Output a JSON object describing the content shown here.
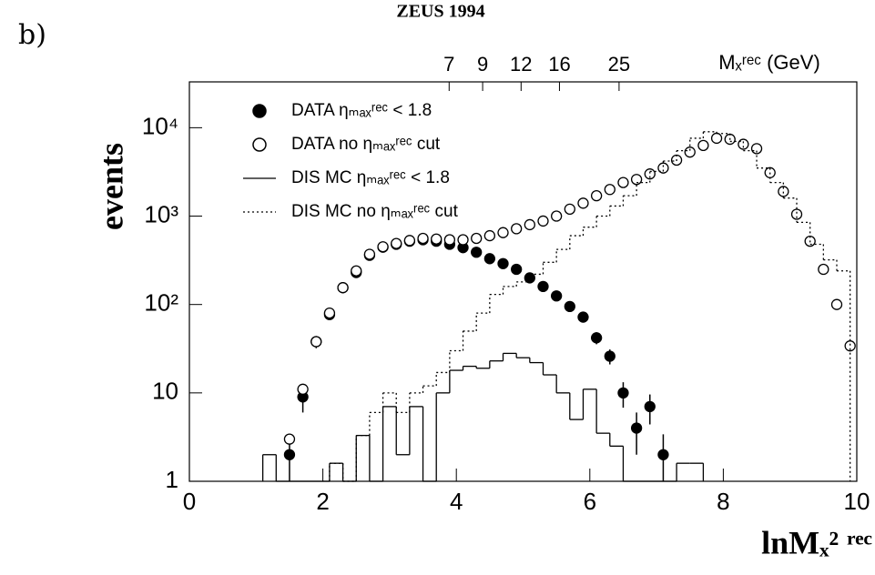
{
  "chart_data": {
    "type": "scatter",
    "panel_label": "b)",
    "title": "ZEUS 1994",
    "y_label": "events",
    "x_label": "lnMₓ² ʳᵉᶜ",
    "x2_label": "Mₓʳᵉᶜ (GeV)",
    "xlim": [
      0,
      10
    ],
    "xticks": [
      0,
      2,
      4,
      6,
      8,
      10
    ],
    "x2ticks": [
      {
        "value": 3.892,
        "label": "7"
      },
      {
        "value": 4.394,
        "label": "9"
      },
      {
        "value": 4.97,
        "label": "12"
      },
      {
        "value": 5.545,
        "label": "16"
      },
      {
        "value": 6.438,
        "label": "25"
      }
    ],
    "ylim": [
      1,
      33000
    ],
    "yticks": [
      1,
      10,
      {
        "value": 100,
        "label": "10²"
      },
      {
        "value": 1000,
        "label": "10³"
      },
      {
        "value": 10000,
        "label": "10⁴"
      }
    ],
    "log_y": true,
    "legend": "upper left",
    "series": [
      {
        "name": "DATA ηₘₐₓʳᵉᶜ < 1.8",
        "type": "scatter",
        "marker": "filled",
        "color": "#000000",
        "x": [
          1.5,
          1.7,
          1.9,
          2.1,
          2.3,
          2.5,
          2.7,
          2.9,
          3.1,
          3.3,
          3.5,
          3.7,
          3.9,
          4.1,
          4.3,
          4.5,
          4.7,
          4.9,
          5.1,
          5.3,
          5.5,
          5.7,
          5.9,
          6.1,
          6.3,
          6.5,
          6.7,
          6.9,
          7.1
        ],
        "values": [
          2,
          9,
          38,
          77,
          155,
          230,
          360,
          445,
          480,
          520,
          540,
          520,
          480,
          440,
          390,
          330,
          290,
          250,
          200,
          160,
          125,
          95,
          72,
          42,
          26,
          10,
          4,
          7,
          2
        ],
        "errors": [
          1.4,
          3,
          6,
          9,
          12,
          15,
          19,
          21,
          22,
          23,
          23,
          23,
          22,
          21,
          20,
          18,
          17,
          16,
          14,
          13,
          11,
          10,
          8.5,
          6.5,
          5,
          3.2,
          2,
          2.6,
          1.4
        ]
      },
      {
        "name": "DATA no ηₘₐₓʳᵉᶜ cut",
        "type": "scatter",
        "marker": "open",
        "color": "#000000",
        "x": [
          1.5,
          1.7,
          1.9,
          2.1,
          2.3,
          2.5,
          2.7,
          2.9,
          3.1,
          3.3,
          3.5,
          3.7,
          3.9,
          4.1,
          4.3,
          4.5,
          4.7,
          4.9,
          5.1,
          5.3,
          5.5,
          5.7,
          5.9,
          6.1,
          6.3,
          6.5,
          6.7,
          6.9,
          7.1,
          7.3,
          7.5,
          7.7,
          7.9,
          8.1,
          8.3,
          8.5,
          8.7,
          8.9,
          9.1,
          9.3,
          9.5,
          9.7,
          9.9
        ],
        "values": [
          3,
          11,
          38,
          80,
          155,
          240,
          370,
          450,
          490,
          530,
          560,
          550,
          540,
          540,
          560,
          600,
          650,
          720,
          800,
          880,
          1000,
          1200,
          1400,
          1700,
          2000,
          2400,
          2600,
          3000,
          3500,
          4300,
          5300,
          6300,
          7600,
          7400,
          6500,
          5800,
          3100,
          1900,
          1050,
          520,
          250,
          100,
          34
        ]
      },
      {
        "name": "DIS MC ηₘₐₓʳᵉᶜ < 1.8",
        "type": "step",
        "dash": "solid",
        "color": "#000000",
        "bins": [
          1.1,
          1.3,
          1.5,
          1.7,
          1.9,
          2.1,
          2.3,
          2.5,
          2.7,
          2.9,
          3.1,
          3.3,
          3.5,
          3.7,
          3.9,
          4.1,
          4.3,
          4.5,
          4.7,
          4.9,
          5.1,
          5.3,
          5.5,
          5.7,
          5.9,
          6.1,
          6.3,
          6.5,
          6.7,
          6.9,
          7.1,
          7.3,
          7.5,
          7.7
        ],
        "values": [
          2,
          0,
          0,
          0,
          0,
          1.6,
          0,
          3.3,
          1,
          7,
          2,
          7,
          1,
          10,
          18,
          20,
          19,
          23,
          28,
          25,
          22,
          16,
          10,
          5,
          11,
          3.5,
          2.5,
          0,
          0,
          0,
          0,
          1.6,
          1.6
        ]
      },
      {
        "name": "DIS MC no ηₘₐₓʳᵉᶜ cut",
        "type": "step",
        "dash": "dotted",
        "color": "#000000",
        "bins": [
          2.1,
          2.3,
          2.5,
          2.7,
          2.9,
          3.1,
          3.3,
          3.5,
          3.7,
          3.9,
          4.1,
          4.3,
          4.5,
          4.7,
          4.9,
          5.1,
          5.3,
          5.5,
          5.7,
          5.9,
          6.1,
          6.3,
          6.5,
          6.7,
          6.9,
          7.1,
          7.3,
          7.5,
          7.7,
          7.9,
          8.1,
          8.3,
          8.5,
          8.7,
          8.9,
          9.1,
          9.3,
          9.5,
          9.7,
          9.9
        ],
        "values": [
          1.6,
          0,
          3.3,
          6,
          10,
          6,
          10,
          12,
          17,
          30,
          50,
          80,
          130,
          160,
          180,
          220,
          300,
          420,
          600,
          750,
          1000,
          1300,
          1700,
          2400,
          3200,
          4200,
          5500,
          7600,
          9000,
          8600,
          7000,
          5500,
          3500,
          2400,
          1600,
          850,
          480,
          320,
          240
        ]
      }
    ]
  }
}
